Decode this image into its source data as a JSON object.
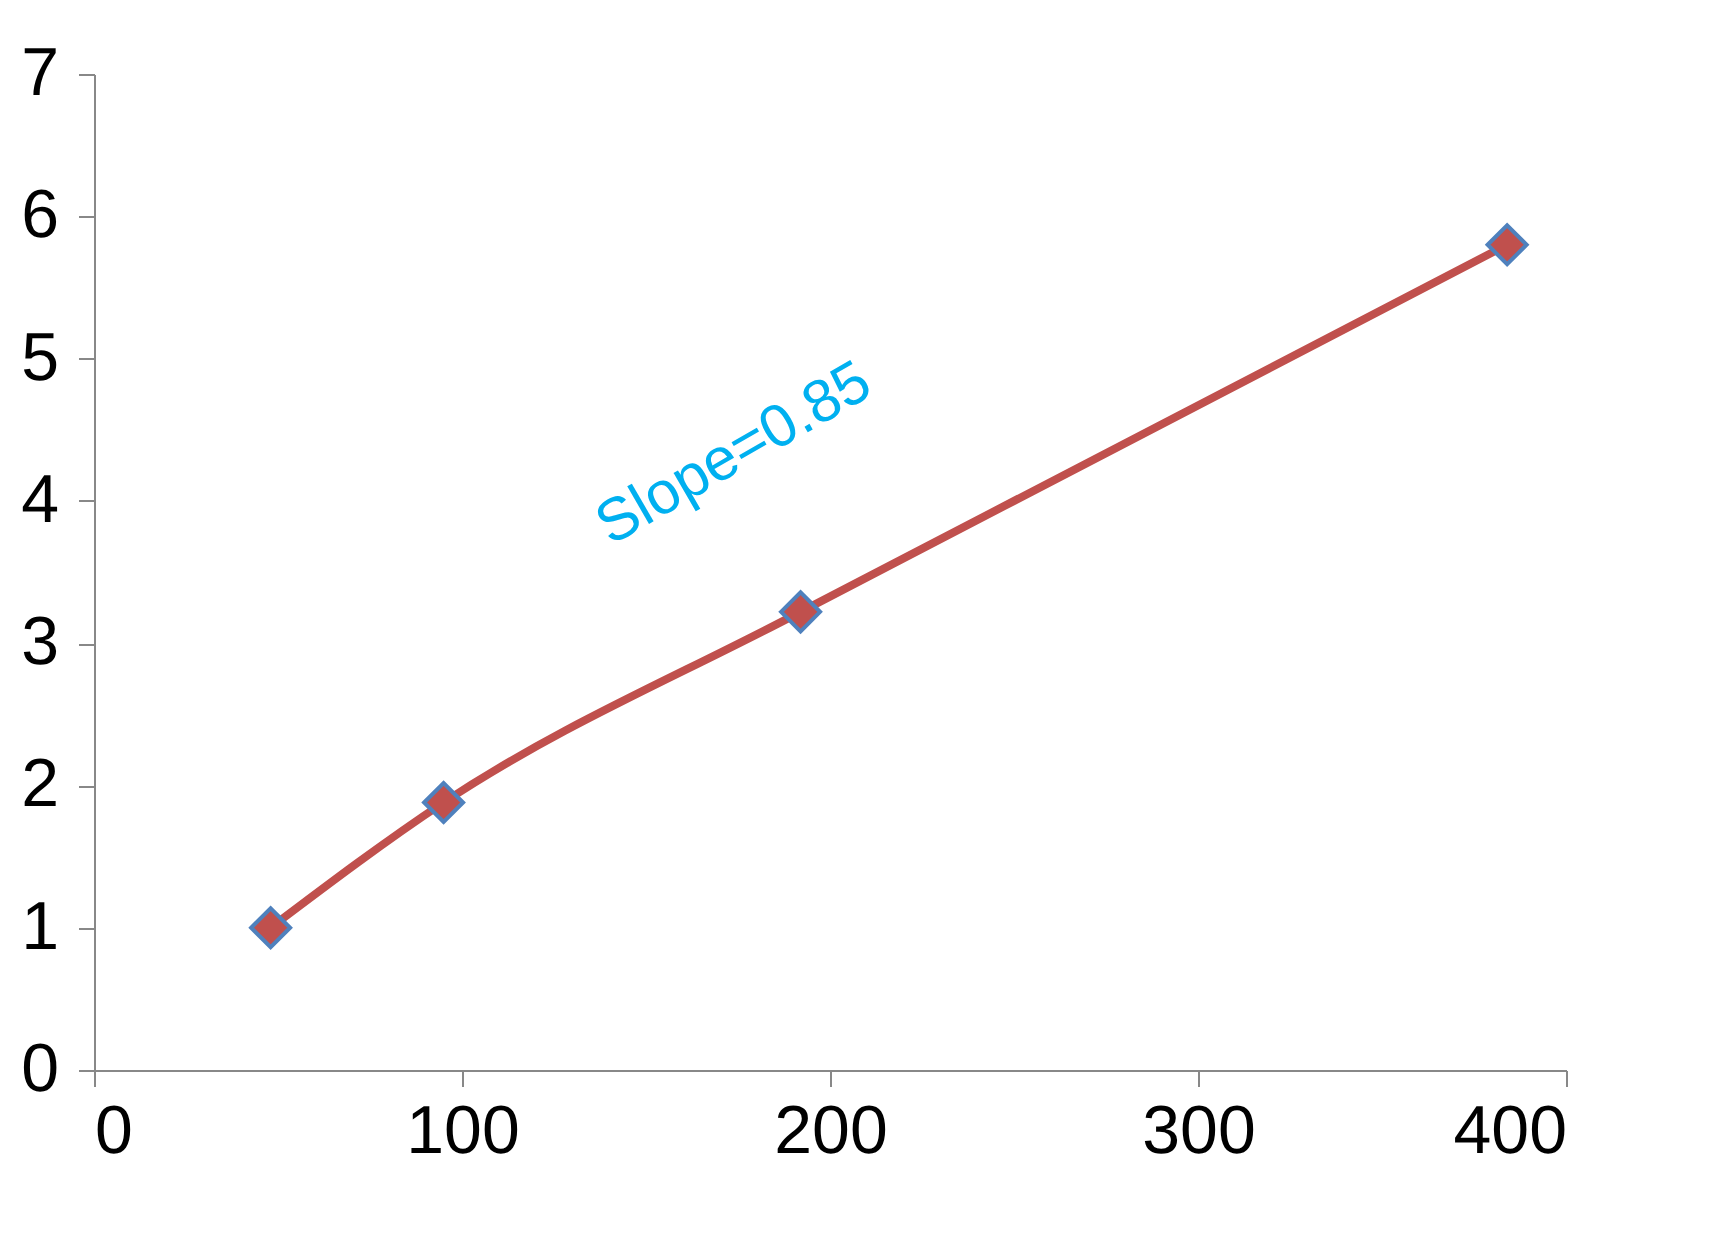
{
  "chart_data": {
    "type": "line",
    "x": [
      48,
      95,
      192,
      384
    ],
    "series": [
      {
        "color": "#c0504d",
        "values": [
          1.0,
          1.88,
          3.22,
          5.8
        ]
      }
    ],
    "xlim": [
      0,
      400
    ],
    "xticks": [
      0,
      100,
      200,
      300,
      400
    ],
    "ylim": [
      0,
      7
    ],
    "yticks": [
      0,
      1,
      2,
      3,
      4,
      5,
      6,
      7
    ],
    "grid": false,
    "legend": false,
    "marker": "diamond",
    "line_style": "solid",
    "annotations": [
      "Slope=0.85"
    ]
  }
}
